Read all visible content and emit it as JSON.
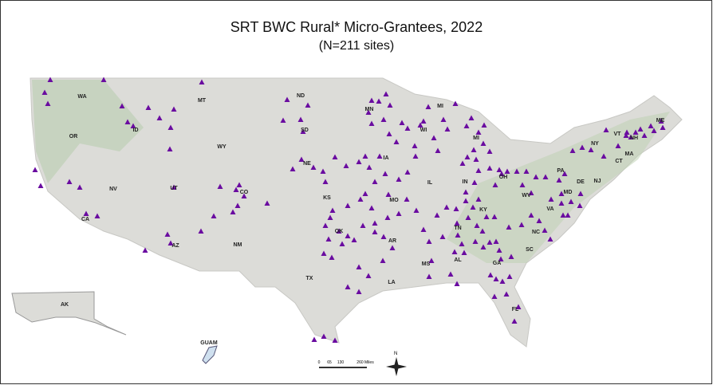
{
  "title": "SRT BWC Rural* Micro-Grantees, 2022",
  "subtitle": "(N=211 sites)",
  "states": [
    "WA",
    "OR",
    "ID",
    "MT",
    "WY",
    "NV",
    "UT",
    "CO",
    "CA",
    "AZ",
    "NM",
    "ND",
    "SD",
    "NE",
    "KS",
    "OK",
    "TX",
    "MN",
    "IA",
    "MO",
    "AR",
    "LA",
    "WI",
    "IL",
    "MI",
    "MI",
    "IN",
    "OH",
    "KY",
    "TN",
    "MS",
    "AL",
    "GA",
    "FL",
    "SC",
    "NC",
    "VA",
    "WV",
    "PA",
    "NY",
    "VT",
    "NH",
    "ME",
    "MA",
    "CT",
    "NJ",
    "DE",
    "MD"
  ],
  "insets": {
    "alaska": "AK",
    "guam": "GUAM"
  },
  "scale_bar": {
    "labels": [
      "0",
      "65",
      "130",
      "260 Miles"
    ]
  },
  "north_arrow": "N"
}
